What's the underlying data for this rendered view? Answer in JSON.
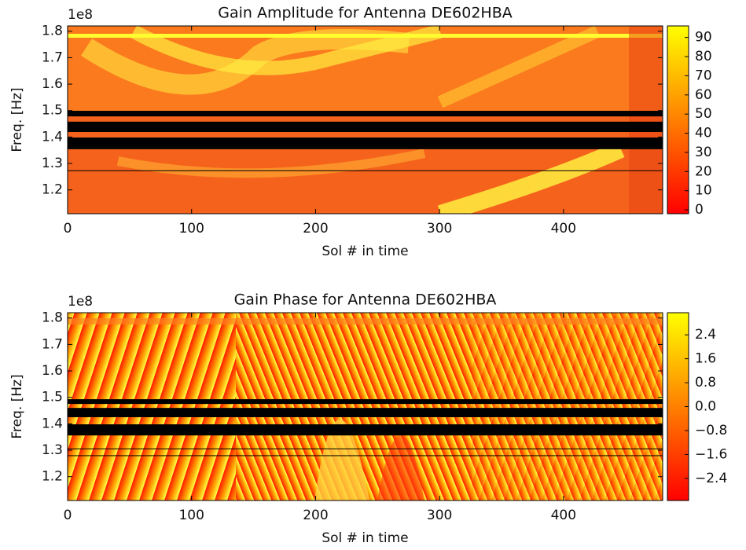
{
  "chart_data": [
    {
      "type": "heatmap",
      "title": "Gain Amplitude for Antenna DE602HBA",
      "xlabel": "Sol # in time",
      "ylabel": "Freq. [Hz]",
      "y_offset_label": "1e8",
      "xlim": [
        0,
        480
      ],
      "xticks": [
        0,
        100,
        200,
        300,
        400
      ],
      "ylim": [
        111000000,
        182000000
      ],
      "yticks": [
        {
          "value": 120000000,
          "label": "1.2"
        },
        {
          "value": 130000000,
          "label": "1.3"
        },
        {
          "value": 140000000,
          "label": "1.4"
        },
        {
          "value": 150000000,
          "label": "1.5"
        },
        {
          "value": 160000000,
          "label": "1.6"
        },
        {
          "value": 170000000,
          "label": "1.7"
        },
        {
          "value": 180000000,
          "label": "1.8"
        }
      ],
      "clim": [
        -2,
        96
      ],
      "cticks": [
        0,
        10,
        20,
        30,
        40,
        50,
        60,
        70,
        80,
        90
      ],
      "masked": [
        [
          147800000,
          149900000
        ],
        [
          141900000,
          145800000
        ],
        [
          135400000,
          139800000
        ],
        [
          127100000,
          127400000
        ]
      ]
    },
    {
      "type": "heatmap",
      "title": "Gain Phase for Antenna DE602HBA",
      "xlabel": "Sol # in time",
      "ylabel": "Freq. [Hz]",
      "y_offset_label": "1e8",
      "xlim": [
        0,
        480
      ],
      "xticks": [
        0,
        100,
        200,
        300,
        400
      ],
      "ylim": [
        111000000,
        182000000
      ],
      "yticks": [
        {
          "value": 120000000,
          "label": "1.2"
        },
        {
          "value": 130000000,
          "label": "1.3"
        },
        {
          "value": 140000000,
          "label": "1.4"
        },
        {
          "value": 150000000,
          "label": "1.5"
        },
        {
          "value": 160000000,
          "label": "1.6"
        },
        {
          "value": 170000000,
          "label": "1.7"
        },
        {
          "value": 180000000,
          "label": "1.8"
        }
      ],
      "clim": [
        -3.14,
        3.14
      ],
      "cticks": [
        {
          "value": -2.4,
          "label": "−2.4"
        },
        {
          "value": -1.6,
          "label": "−1.6"
        },
        {
          "value": -0.8,
          "label": "−0.8"
        },
        {
          "value": 0,
          "label": "0.0"
        },
        0.8,
        1.6,
        2.4
      ],
      "masked": [
        [
          147500000,
          149300000
        ],
        [
          142500000,
          146000000
        ],
        [
          135600000,
          139800000
        ],
        [
          130400000,
          130700000
        ],
        [
          127800000,
          128100000
        ]
      ]
    }
  ]
}
